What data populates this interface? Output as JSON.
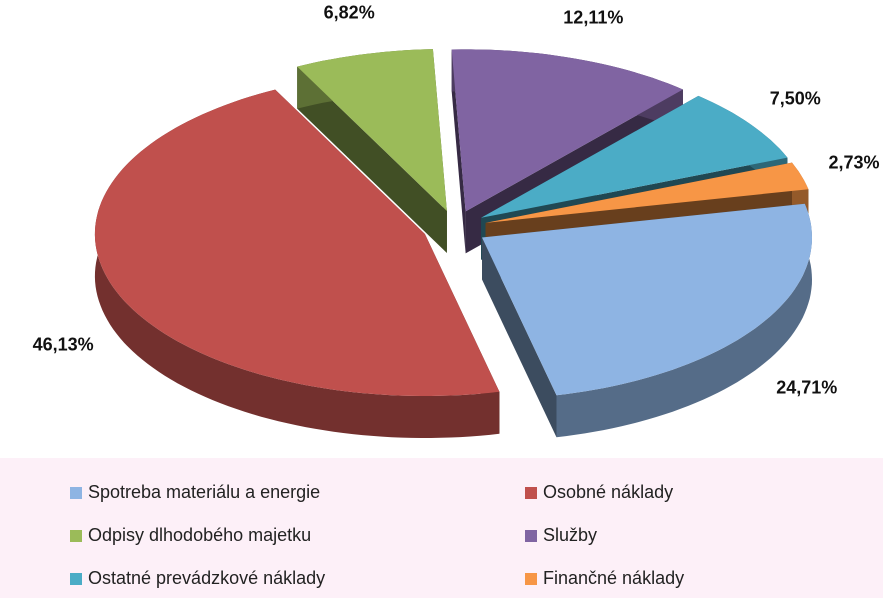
{
  "chart_data": {
    "type": "pie",
    "categories": [
      "Spotreba materiálu a energie",
      "Osobné náklady",
      "Odpisy dlhodobého majetku",
      "Služby",
      "Ostatné prevádzkové náklady",
      "Finančné náklady"
    ],
    "values": [
      24.71,
      46.13,
      6.82,
      12.11,
      7.5,
      2.73
    ],
    "value_labels": [
      "24,71%",
      "46,13%",
      "6,82%",
      "12,11%",
      "7,50%",
      "2,73%"
    ],
    "colors": [
      "#8eb4e3",
      "#c0504d",
      "#9bbb59",
      "#8064a2",
      "#4bacc6",
      "#f79646"
    ],
    "legend": "bottom"
  }
}
